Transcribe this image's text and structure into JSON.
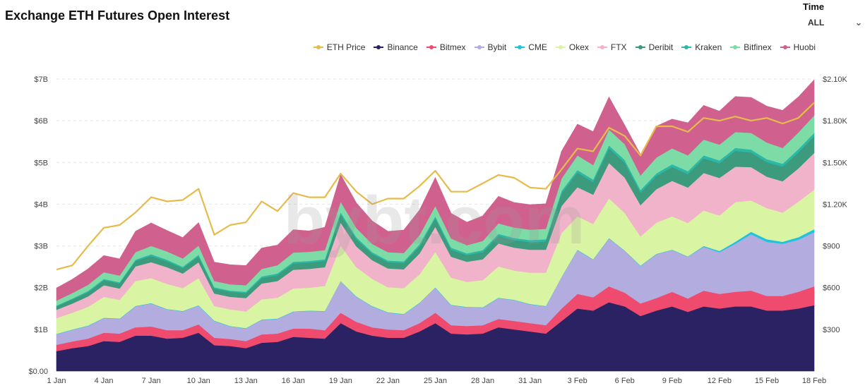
{
  "header": {
    "title": "Exchange ETH Futures Open Interest"
  },
  "time_filter": {
    "label": "Time",
    "value": "ALL"
  },
  "watermark": "bybt.com",
  "chart_data": {
    "type": "area",
    "stacked": true,
    "title": "Exchange ETH Futures Open Interest",
    "x_ticks": [
      "1 Jan",
      "4 Jan",
      "7 Jan",
      "10 Jan",
      "13 Jan",
      "16 Jan",
      "19 Jan",
      "22 Jan",
      "25 Jan",
      "28 Jan",
      "31 Jan",
      "3 Feb",
      "6 Feb",
      "9 Feb",
      "12 Feb",
      "15 Feb",
      "18 Feb"
    ],
    "y_left": {
      "ticks": [
        "$0.00",
        "$1B",
        "$2B",
        "$3B",
        "$4B",
        "$5B",
        "$6B",
        "$7B"
      ],
      "min": 0,
      "max": 7,
      "unit": "B USD"
    },
    "y_right": {
      "ticks": [
        "$300",
        "$600",
        "$900",
        "$1.20K",
        "$1.50K",
        "$1.80K",
        "$2.10K"
      ],
      "min": 0,
      "max": 2100
    },
    "legend_position": "top-right",
    "grid": true,
    "x": [
      "1 Jan",
      "2 Jan",
      "3 Jan",
      "4 Jan",
      "5 Jan",
      "6 Jan",
      "7 Jan",
      "8 Jan",
      "9 Jan",
      "10 Jan",
      "11 Jan",
      "12 Jan",
      "13 Jan",
      "14 Jan",
      "15 Jan",
      "16 Jan",
      "17 Jan",
      "18 Jan",
      "19 Jan",
      "20 Jan",
      "21 Jan",
      "22 Jan",
      "23 Jan",
      "24 Jan",
      "25 Jan",
      "26 Jan",
      "27 Jan",
      "28 Jan",
      "29 Jan",
      "30 Jan",
      "31 Jan",
      "1 Feb",
      "2 Feb",
      "3 Feb",
      "4 Feb",
      "5 Feb",
      "6 Feb",
      "7 Feb",
      "8 Feb",
      "9 Feb",
      "10 Feb",
      "11 Feb",
      "12 Feb",
      "13 Feb",
      "14 Feb",
      "15 Feb",
      "16 Feb",
      "17 Feb",
      "18 Feb"
    ],
    "series": [
      {
        "name": "Binance",
        "color": "#2a2262",
        "values": [
          0.48,
          0.55,
          0.6,
          0.72,
          0.7,
          0.85,
          0.85,
          0.78,
          0.8,
          0.92,
          0.62,
          0.6,
          0.55,
          0.68,
          0.7,
          0.82,
          0.8,
          0.78,
          1.15,
          0.95,
          0.85,
          0.8,
          0.8,
          0.95,
          1.15,
          0.9,
          0.88,
          0.9,
          1.05,
          1.0,
          0.95,
          0.9,
          1.2,
          1.5,
          1.45,
          1.65,
          1.55,
          1.32,
          1.45,
          1.55,
          1.42,
          1.55,
          1.5,
          1.55,
          1.55,
          1.45,
          1.45,
          1.5,
          1.58
        ]
      },
      {
        "name": "Bitmex",
        "color": "#ee4b6e",
        "values": [
          0.15,
          0.16,
          0.18,
          0.2,
          0.2,
          0.2,
          0.22,
          0.2,
          0.18,
          0.2,
          0.18,
          0.17,
          0.17,
          0.2,
          0.2,
          0.2,
          0.22,
          0.2,
          0.25,
          0.23,
          0.2,
          0.2,
          0.18,
          0.2,
          0.25,
          0.2,
          0.2,
          0.2,
          0.2,
          0.2,
          0.2,
          0.2,
          0.3,
          0.35,
          0.32,
          0.38,
          0.33,
          0.3,
          0.3,
          0.35,
          0.32,
          0.38,
          0.35,
          0.35,
          0.38,
          0.35,
          0.35,
          0.4,
          0.45
        ]
      },
      {
        "name": "Bybit",
        "color": "#b3addf",
        "values": [
          0.25,
          0.28,
          0.3,
          0.35,
          0.35,
          0.5,
          0.55,
          0.5,
          0.45,
          0.45,
          0.4,
          0.3,
          0.3,
          0.35,
          0.35,
          0.4,
          0.42,
          0.45,
          0.75,
          0.6,
          0.5,
          0.4,
          0.38,
          0.48,
          0.6,
          0.48,
          0.45,
          0.42,
          0.5,
          0.5,
          0.45,
          0.45,
          0.75,
          1.05,
          0.9,
          1.15,
          1.0,
          0.9,
          1.05,
          1.0,
          1.0,
          1.05,
          1.0,
          1.15,
          1.35,
          1.3,
          1.25,
          1.25,
          1.3
        ]
      },
      {
        "name": "CME",
        "color": "#1fc3e0",
        "values": [
          0.01,
          0.01,
          0.01,
          0.01,
          0.01,
          0.01,
          0.01,
          0.01,
          0.01,
          0.01,
          0.01,
          0.01,
          0.01,
          0.01,
          0.01,
          0.01,
          0.01,
          0.01,
          0.01,
          0.01,
          0.01,
          0.01,
          0.01,
          0.01,
          0.01,
          0.01,
          0.01,
          0.01,
          0.01,
          0.01,
          0.01,
          0.01,
          0.01,
          0.01,
          0.01,
          0.01,
          0.01,
          0.01,
          0.01,
          0.01,
          0.01,
          0.02,
          0.03,
          0.05,
          0.06,
          0.06,
          0.05,
          0.06,
          0.07
        ]
      },
      {
        "name": "Okex",
        "color": "#d9f4a2",
        "values": [
          0.38,
          0.4,
          0.45,
          0.5,
          0.45,
          0.6,
          0.6,
          0.6,
          0.55,
          0.65,
          0.35,
          0.4,
          0.4,
          0.48,
          0.5,
          0.55,
          0.55,
          0.6,
          0.85,
          0.7,
          0.65,
          0.6,
          0.62,
          0.68,
          0.85,
          0.65,
          0.6,
          0.65,
          0.75,
          0.7,
          0.75,
          0.8,
          1.05,
          0.8,
          0.85,
          0.95,
          0.9,
          0.7,
          0.75,
          0.8,
          0.8,
          0.85,
          0.85,
          0.95,
          0.75,
          0.75,
          0.7,
          0.85,
          0.95
        ]
      },
      {
        "name": "FTX",
        "color": "#f1b3c9",
        "values": [
          0.2,
          0.22,
          0.25,
          0.28,
          0.27,
          0.35,
          0.38,
          0.4,
          0.35,
          0.38,
          0.3,
          0.3,
          0.32,
          0.38,
          0.4,
          0.45,
          0.45,
          0.45,
          0.55,
          0.5,
          0.45,
          0.45,
          0.45,
          0.5,
          0.6,
          0.5,
          0.48,
          0.5,
          0.55,
          0.55,
          0.55,
          0.55,
          0.65,
          0.7,
          0.7,
          0.85,
          0.85,
          0.75,
          0.8,
          0.85,
          0.85,
          0.9,
          0.9,
          0.85,
          0.8,
          0.75,
          0.75,
          0.8,
          0.88
        ]
      },
      {
        "name": "Deribit",
        "color": "#3c9a7d",
        "values": [
          0.08,
          0.1,
          0.1,
          0.12,
          0.12,
          0.13,
          0.15,
          0.14,
          0.13,
          0.14,
          0.12,
          0.12,
          0.12,
          0.13,
          0.14,
          0.15,
          0.15,
          0.15,
          0.2,
          0.17,
          0.15,
          0.15,
          0.15,
          0.17,
          0.2,
          0.17,
          0.16,
          0.17,
          0.18,
          0.18,
          0.18,
          0.2,
          0.3,
          0.35,
          0.3,
          0.35,
          0.35,
          0.3,
          0.32,
          0.33,
          0.32,
          0.35,
          0.35,
          0.38,
          0.35,
          0.35,
          0.35,
          0.38,
          0.4
        ]
      },
      {
        "name": "Kraken",
        "color": "#2bb8a6",
        "values": [
          0.02,
          0.02,
          0.03,
          0.03,
          0.03,
          0.03,
          0.04,
          0.04,
          0.03,
          0.04,
          0.03,
          0.03,
          0.03,
          0.04,
          0.04,
          0.04,
          0.04,
          0.04,
          0.05,
          0.05,
          0.04,
          0.04,
          0.04,
          0.05,
          0.05,
          0.05,
          0.04,
          0.05,
          0.05,
          0.05,
          0.05,
          0.05,
          0.06,
          0.06,
          0.06,
          0.07,
          0.07,
          0.06,
          0.06,
          0.07,
          0.07,
          0.07,
          0.07,
          0.07,
          0.07,
          0.07,
          0.07,
          0.08,
          0.08
        ]
      },
      {
        "name": "Bitfinex",
        "color": "#7ddba6",
        "values": [
          0.12,
          0.13,
          0.15,
          0.16,
          0.16,
          0.18,
          0.2,
          0.2,
          0.2,
          0.22,
          0.15,
          0.15,
          0.16,
          0.18,
          0.2,
          0.22,
          0.22,
          0.22,
          0.25,
          0.22,
          0.2,
          0.2,
          0.2,
          0.22,
          0.25,
          0.22,
          0.2,
          0.22,
          0.25,
          0.25,
          0.25,
          0.25,
          0.3,
          0.35,
          0.35,
          0.38,
          0.38,
          0.35,
          0.38,
          0.38,
          0.38,
          0.38,
          0.38,
          0.38,
          0.4,
          0.4,
          0.38,
          0.4,
          0.42
        ]
      },
      {
        "name": "Huobi",
        "color": "#d0618e",
        "values": [
          0.3,
          0.33,
          0.38,
          0.4,
          0.4,
          0.5,
          0.55,
          0.5,
          0.5,
          0.55,
          0.45,
          0.47,
          0.47,
          0.5,
          0.48,
          0.55,
          0.5,
          0.55,
          0.65,
          0.6,
          0.55,
          0.5,
          0.55,
          0.6,
          0.68,
          0.6,
          0.55,
          0.6,
          0.65,
          0.6,
          0.6,
          0.6,
          0.65,
          0.75,
          0.8,
          0.78,
          0.45,
          0.5,
          0.75,
          0.7,
          0.78,
          0.82,
          0.8,
          0.85,
          0.85,
          0.87,
          0.9,
          0.85,
          0.85
        ]
      }
    ],
    "price_series": {
      "name": "ETH Price",
      "color": "#e6bb4b",
      "values": [
        730,
        760,
        900,
        1030,
        1050,
        1140,
        1250,
        1220,
        1230,
        1310,
        980,
        1050,
        1070,
        1220,
        1150,
        1280,
        1250,
        1250,
        1420,
        1290,
        1200,
        1240,
        1240,
        1330,
        1440,
        1290,
        1290,
        1350,
        1410,
        1390,
        1320,
        1310,
        1450,
        1600,
        1580,
        1750,
        1690,
        1550,
        1760,
        1760,
        1720,
        1820,
        1800,
        1830,
        1800,
        1820,
        1780,
        1820,
        1930
      ]
    }
  }
}
